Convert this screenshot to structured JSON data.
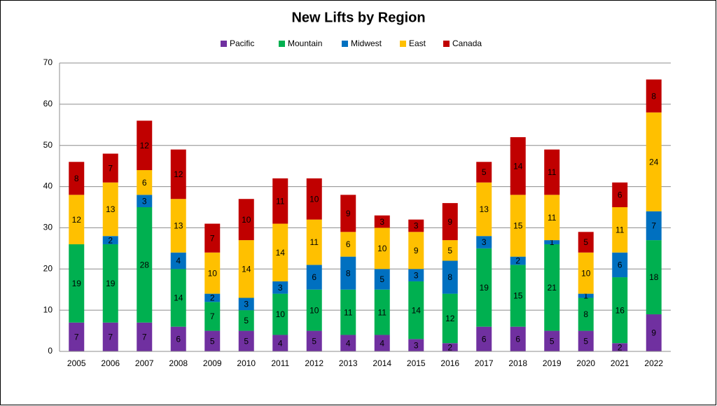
{
  "chart_data": {
    "type": "stacked_bar",
    "title": "New Lifts by Region",
    "categories": [
      "2005",
      "2006",
      "2007",
      "2008",
      "2009",
      "2010",
      "2011",
      "2012",
      "2013",
      "2014",
      "2015",
      "2016",
      "2017",
      "2018",
      "2019",
      "2020",
      "2021",
      "2022"
    ],
    "series": [
      {
        "name": "Pacific",
        "color": "#7030a0",
        "values": [
          7,
          7,
          7,
          6,
          5,
          5,
          4,
          5,
          4,
          4,
          3,
          2,
          6,
          6,
          5,
          5,
          2,
          9
        ]
      },
      {
        "name": "Mountain",
        "color": "#00b050",
        "values": [
          19,
          19,
          28,
          14,
          7,
          5,
          10,
          10,
          11,
          11,
          14,
          12,
          19,
          15,
          21,
          8,
          16,
          18
        ]
      },
      {
        "name": "Midwest",
        "color": "#0070c0",
        "values": [
          0,
          2,
          3,
          4,
          2,
          3,
          3,
          6,
          8,
          5,
          3,
          8,
          3,
          2,
          1,
          1,
          6,
          7
        ]
      },
      {
        "name": "East",
        "color": "#ffc000",
        "values": [
          12,
          13,
          6,
          13,
          10,
          14,
          14,
          11,
          6,
          10,
          9,
          5,
          13,
          15,
          11,
          10,
          11,
          24
        ]
      },
      {
        "name": "Canada",
        "color": "#c00000",
        "values": [
          8,
          7,
          12,
          12,
          7,
          10,
          11,
          10,
          9,
          3,
          3,
          9,
          5,
          14,
          11,
          5,
          6,
          8
        ]
      }
    ],
    "ylim": [
      0,
      70
    ],
    "yticks": [
      0,
      10,
      20,
      30,
      40,
      50,
      60,
      70
    ],
    "grid": true,
    "legend": "top"
  }
}
